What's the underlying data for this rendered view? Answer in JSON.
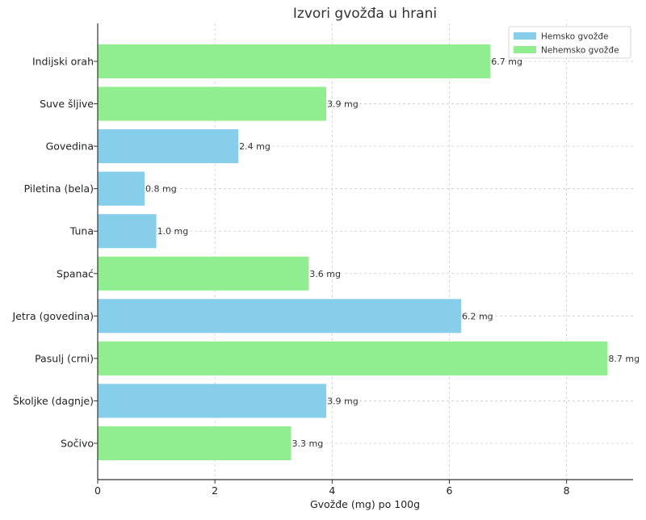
{
  "chart_data": {
    "type": "bar",
    "orientation": "horizontal",
    "title": "Izvori gvožđa u hrani",
    "xlabel": "Gvožđe (mg) po 100g",
    "ylabel": "",
    "xlim": [
      0,
      9.135
    ],
    "xticks": [
      0,
      2,
      4,
      6,
      8
    ],
    "grid": true,
    "legend_position": "top-right",
    "value_suffix": " mg",
    "legend": [
      {
        "name": "Hemsko gvožđe",
        "color": "#87CEEB"
      },
      {
        "name": "Nehemsko gvožđe",
        "color": "#90EE90"
      }
    ],
    "categories": [
      "Sočivo",
      "Školjke (dagnje)",
      "Pasulj (crni)",
      "Jetra (govedina)",
      "Spanać",
      "Tuna",
      "Piletina (bela)",
      "Govedina",
      "Suve šljive",
      "Indijski orah"
    ],
    "values": [
      3.3,
      3.9,
      8.7,
      6.2,
      3.6,
      1.0,
      0.8,
      2.4,
      3.9,
      6.7
    ],
    "types": [
      "Nehemsko gvožđe",
      "Hemsko gvožđe",
      "Nehemsko gvožđe",
      "Hemsko gvožđe",
      "Nehemsko gvožđe",
      "Hemsko gvožđe",
      "Hemsko gvožđe",
      "Hemsko gvožđe",
      "Nehemsko gvožđe",
      "Nehemsko gvožđe"
    ],
    "value_labels": [
      "3.3 mg",
      "3.9 mg",
      "8.7 mg",
      "6.2 mg",
      "3.6 mg",
      "1.0 mg",
      "0.8 mg",
      "2.4 mg",
      "3.9 mg",
      "6.7 mg"
    ]
  }
}
